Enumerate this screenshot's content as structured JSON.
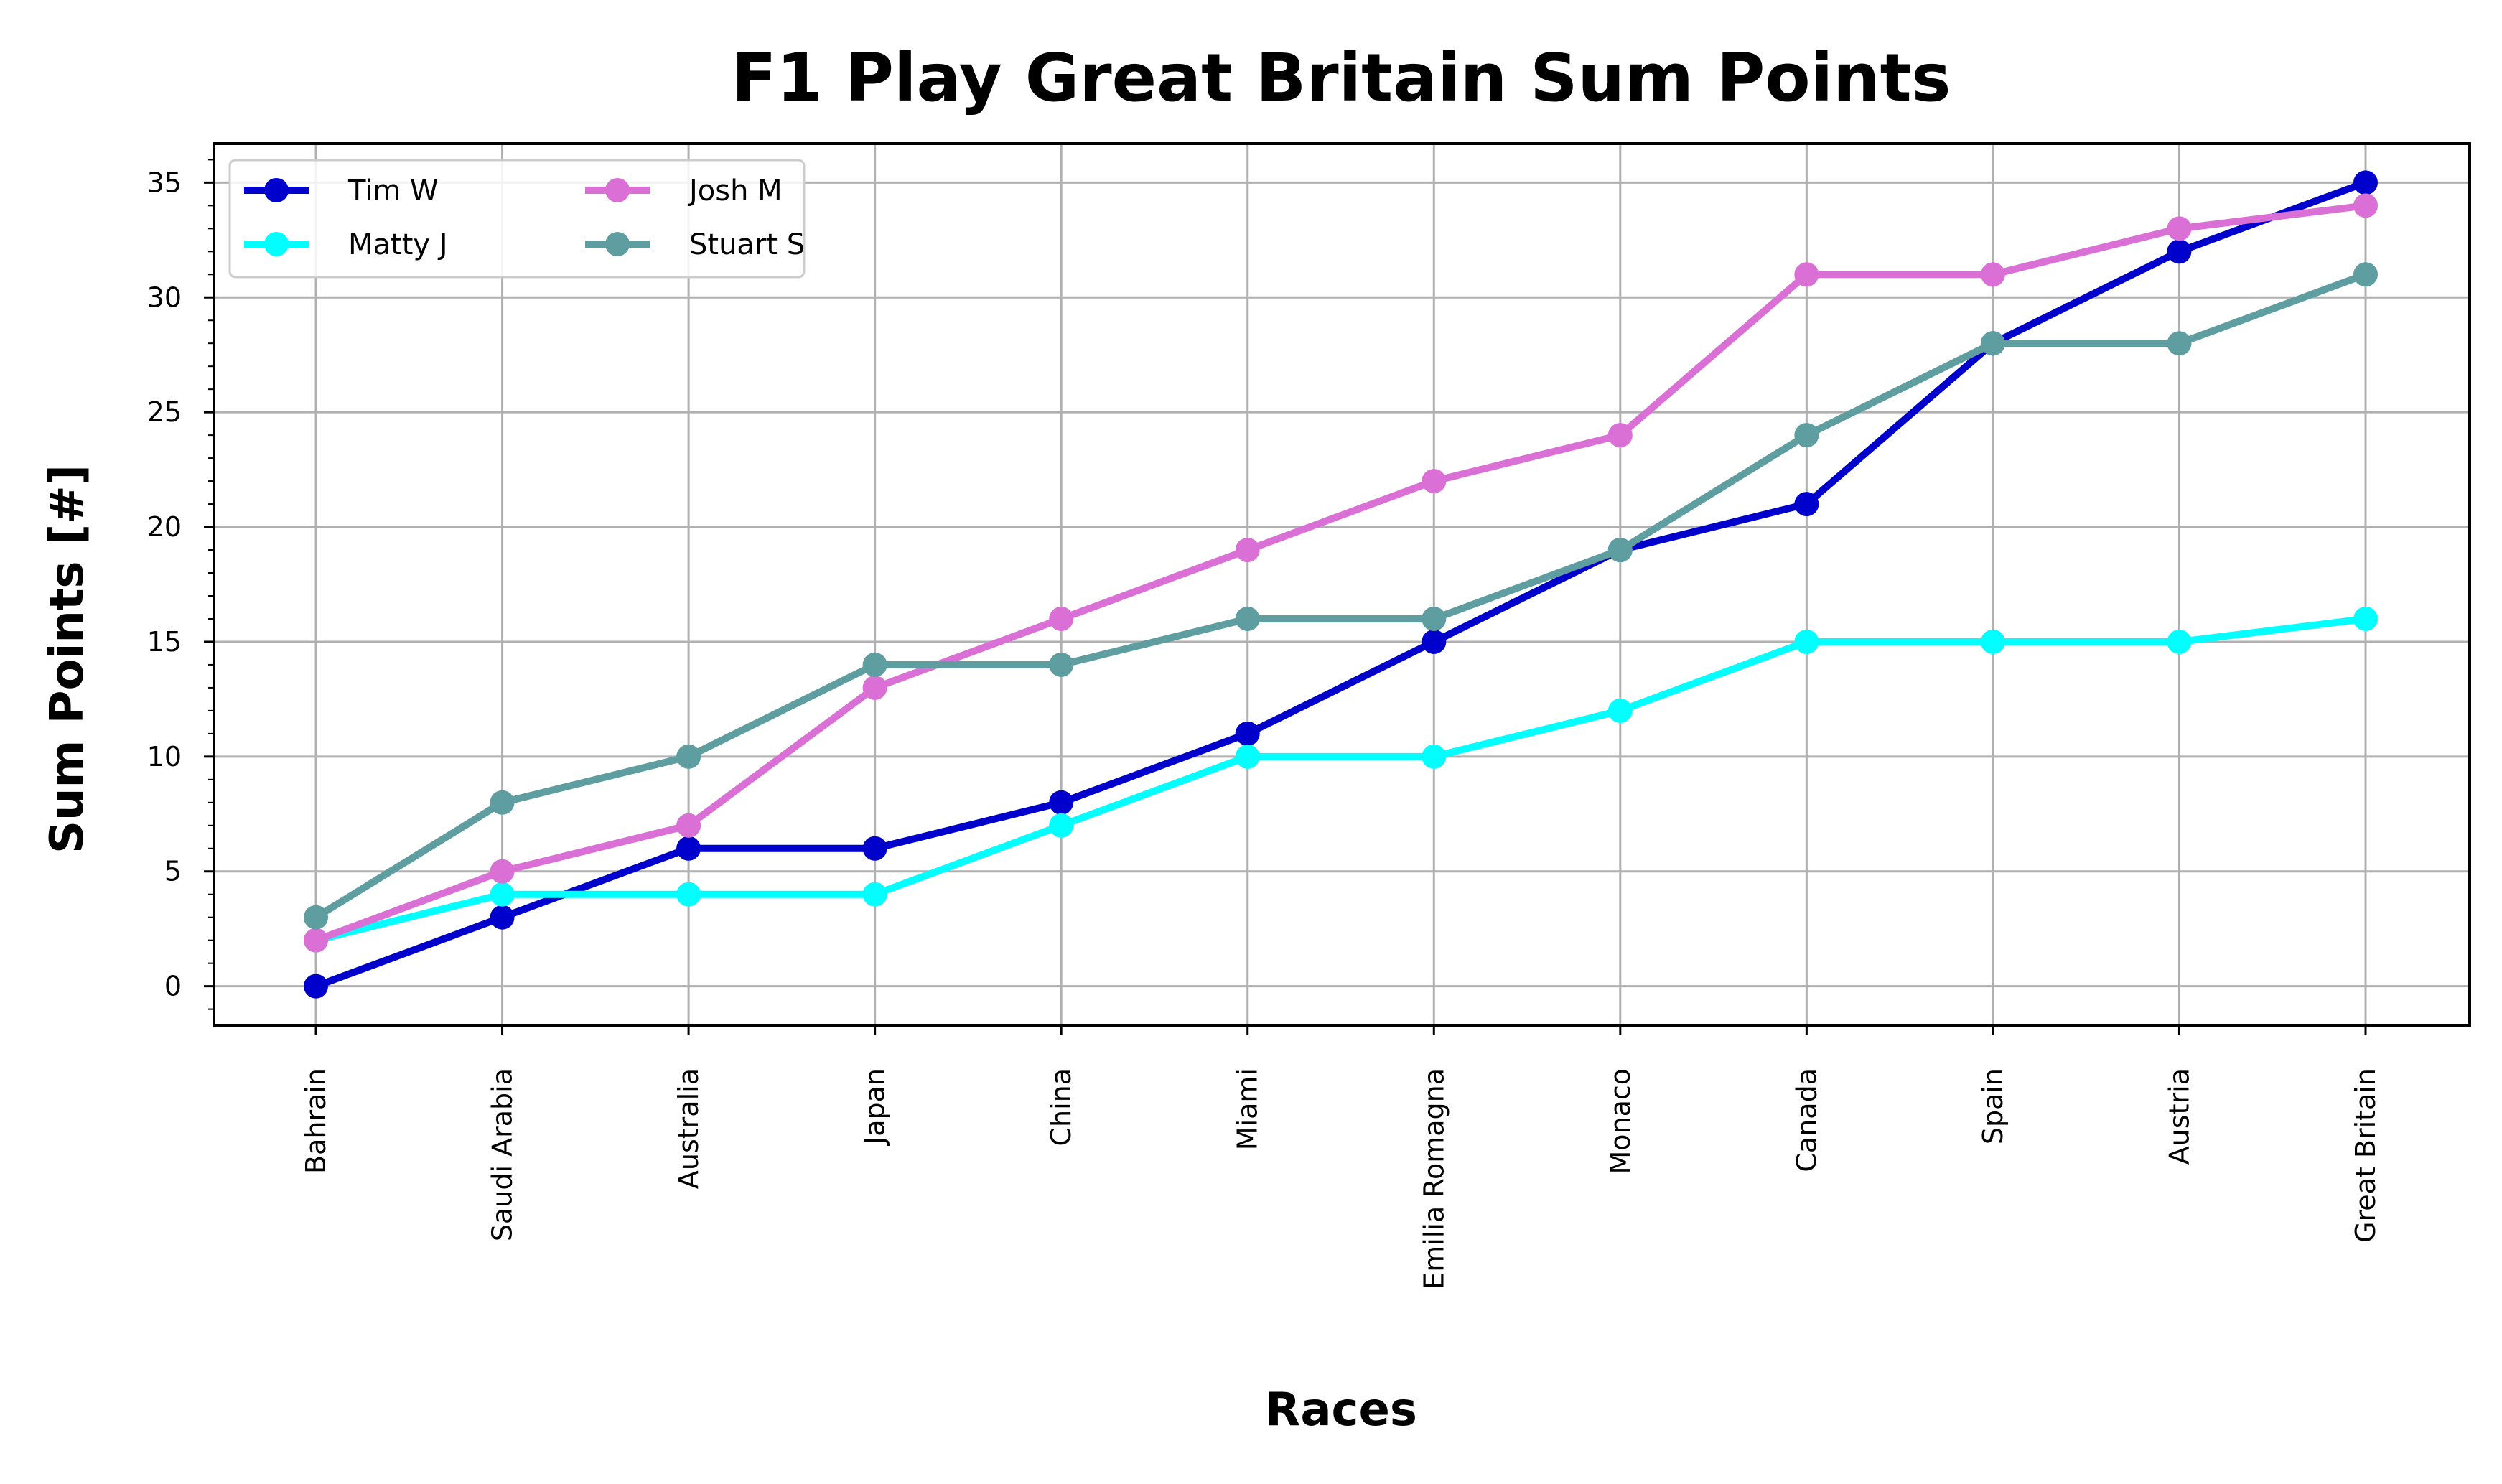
{
  "chart_data": {
    "type": "line",
    "title": "F1 Play Great Britain Sum Points",
    "xlabel": "Races",
    "ylabel": "Sum Points [#]",
    "categories": [
      "Bahrain",
      "Saudi Arabia",
      "Australia",
      "Japan",
      "China",
      "Miami",
      "Emilia Romagna",
      "Monaco",
      "Canada",
      "Spain",
      "Austria",
      "Great Britain"
    ],
    "ylim": [
      -1.7,
      36.7
    ],
    "yticks": [
      0,
      5,
      10,
      15,
      20,
      25,
      30,
      35
    ],
    "grid": true,
    "legend_position": "top-left",
    "legend_columns": 2,
    "series": [
      {
        "name": "Tim W",
        "color": "#0000CD",
        "values": [
          0,
          3,
          6,
          6,
          8,
          11,
          15,
          19,
          21,
          28,
          32,
          35
        ]
      },
      {
        "name": "Matty J",
        "color": "#00FFFF",
        "values": [
          2,
          4,
          4,
          4,
          7,
          10,
          10,
          12,
          15,
          15,
          15,
          16
        ]
      },
      {
        "name": "Josh M",
        "color": "#DA70D6",
        "values": [
          2,
          5,
          7,
          13,
          16,
          19,
          22,
          24,
          31,
          31,
          33,
          34
        ]
      },
      {
        "name": "Stuart S",
        "color": "#5F9EA0",
        "values": [
          3,
          8,
          10,
          14,
          14,
          16,
          16,
          19,
          24,
          28,
          28,
          31
        ]
      }
    ],
    "colors": {
      "grid": "#b0b0b0",
      "axes": "#000000",
      "legend_border": "#cccccc"
    }
  }
}
